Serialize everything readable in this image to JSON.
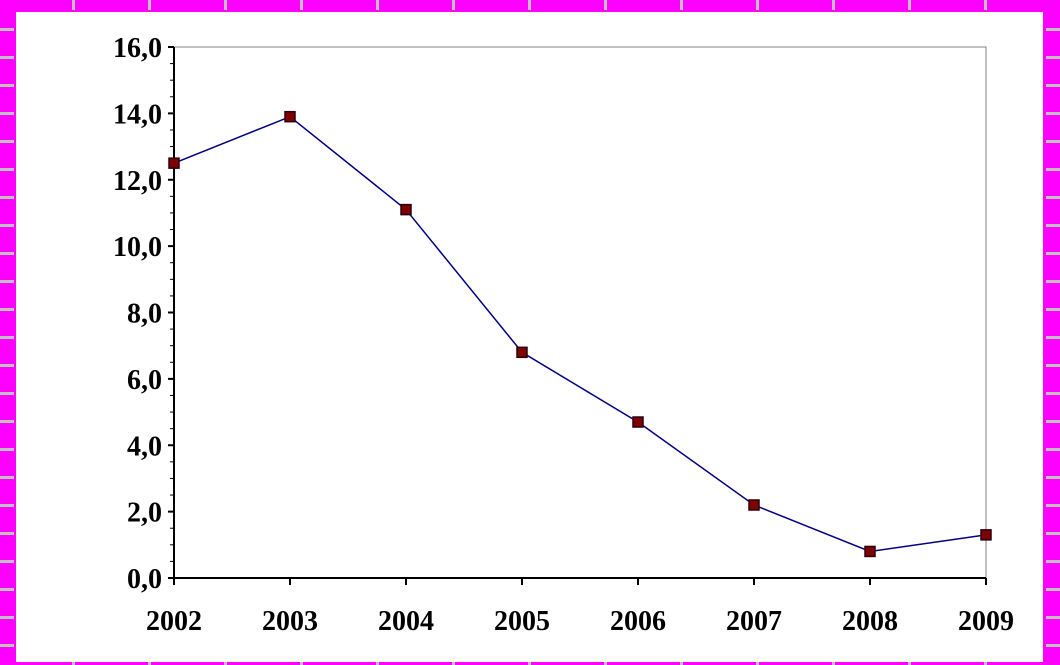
{
  "chart_data": {
    "type": "line",
    "title": "",
    "xlabel": "",
    "ylabel": "",
    "categories": [
      "2002",
      "2003",
      "2004",
      "2005",
      "2006",
      "2007",
      "2008",
      "2009"
    ],
    "series": [
      {
        "values": [
          12.5,
          13.9,
          11.1,
          6.8,
          4.7,
          2.2,
          0.8,
          1.3
        ]
      }
    ],
    "ylim": [
      0,
      16
    ],
    "yticks": [
      "0,0",
      "2,0",
      "4,0",
      "6,0",
      "8,0",
      "10,0",
      "12,0",
      "14,0",
      "16,0"
    ],
    "grid": false,
    "legend": "none",
    "colors": {
      "line": "#000080",
      "marker": "#800000",
      "marker_edge": "#2a0010"
    }
  },
  "frame": {
    "background": "#ff00ff",
    "tick_color": "#c0c0c0"
  }
}
